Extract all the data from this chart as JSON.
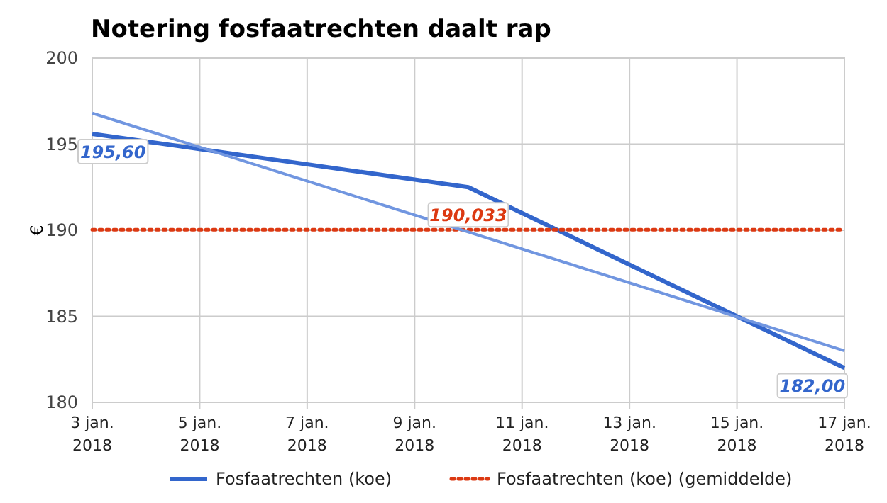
{
  "chart_data": {
    "type": "line",
    "title": "Notering fosfaatrechten daalt rap",
    "ylabel": "€",
    "xlim": [
      "2018-01-03",
      "2018-01-17"
    ],
    "xticks": [
      {
        "value": "2018-01-03",
        "label": "3 jan.\n2018"
      },
      {
        "value": "2018-01-05",
        "label": "5 jan.\n2018"
      },
      {
        "value": "2018-01-07",
        "label": "7 jan.\n2018"
      },
      {
        "value": "2018-01-09",
        "label": "9 jan.\n2018"
      },
      {
        "value": "2018-01-11",
        "label": "11 jan.\n2018"
      },
      {
        "value": "2018-01-13",
        "label": "13 jan.\n2018"
      },
      {
        "value": "2018-01-15",
        "label": "15 jan.\n2018"
      },
      {
        "value": "2018-01-17",
        "label": "17 jan.\n2018"
      }
    ],
    "ylim": [
      180,
      200
    ],
    "yticks": [
      180,
      185,
      190,
      195,
      200
    ],
    "grid": true,
    "legend": "bottom",
    "marker": "none",
    "series": [
      {
        "name": "Fosfaatrechten (koe)",
        "color": "#3366cc",
        "x": [
          "2018-01-03",
          "2018-01-10",
          "2018-01-17"
        ],
        "values": [
          195.6,
          192.5,
          182.0
        ],
        "value_labels": [
          "195,60",
          null,
          "182,00"
        ],
        "line_style": "solid"
      },
      {
        "name": "Fosfaatrechten (koe) (gemiddelde)",
        "color": "#dc3912",
        "x": [
          "2018-01-03",
          "2018-01-17"
        ],
        "values": [
          190.033,
          190.033
        ],
        "line_style": "dotted"
      },
      {
        "color": "#7196e0",
        "x": [
          "2018-01-03",
          "2018-01-17"
        ],
        "values": [
          196.8,
          183.0
        ],
        "line_style": "solid"
      }
    ],
    "annotations": [
      {
        "text": "190,033",
        "x": "2018-01-10",
        "y": 190.033
      }
    ]
  }
}
